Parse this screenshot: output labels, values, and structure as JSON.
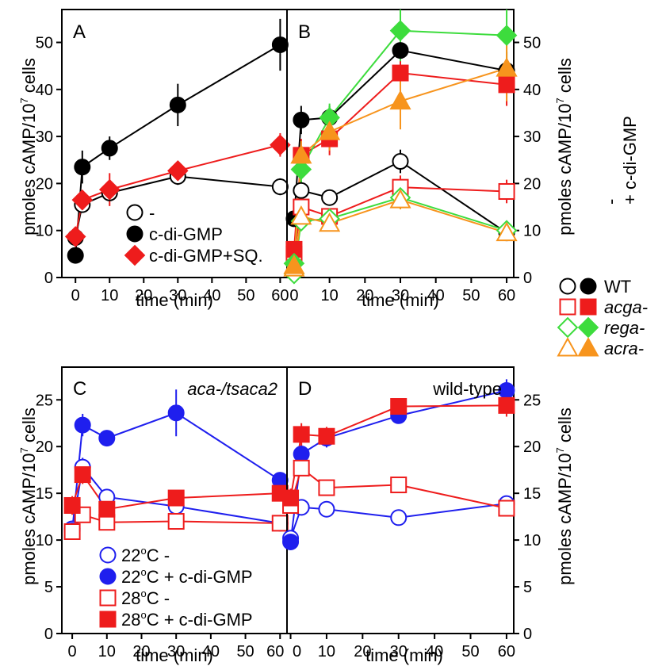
{
  "colors": {
    "black": "#000000",
    "red": "#ee1c1c",
    "green": "#3ddc3d",
    "orange": "#f7941d",
    "blue": "#1f1fee"
  },
  "figure": {
    "time_axis_label": "time (min)",
    "y_axis_label_main": "pmoles cAMP/10",
    "y_axis_label_exp": "7",
    "y_axis_label_tail": " cells",
    "shared_legend": {
      "header_minus": "-",
      "header_plus": "+ c-di-GMP",
      "rows": [
        {
          "label": "WT",
          "color": "#000000",
          "shape": "circle"
        },
        {
          "label": "acga-",
          "color": "#ee1c1c",
          "shape": "square"
        },
        {
          "label": "rega-",
          "color": "#3ddc3d",
          "shape": "diamond"
        },
        {
          "label": "acra-",
          "color": "#f7941d",
          "shape": "triangle"
        }
      ]
    }
  },
  "chart_data": [
    {
      "panel": "A",
      "type": "line",
      "annotation": "",
      "xlabel": "time (min)",
      "ylabel": "pmoles cAMP/10^7 cells",
      "xlim": [
        -4,
        62
      ],
      "ylim": [
        0,
        57
      ],
      "xticks": [
        0,
        10,
        20,
        30,
        40,
        50,
        60
      ],
      "yticks": [
        0,
        10,
        20,
        30,
        40,
        50
      ],
      "series": [
        {
          "name": "-",
          "color": "#000000",
          "marker": "circle",
          "filled": false,
          "x": [
            0,
            2,
            10,
            30,
            60
          ],
          "y": [
            8.5,
            15.5,
            18.0,
            21.5,
            19.3
          ],
          "err": [
            1.2,
            1.5,
            1.5,
            1.8,
            1.8
          ]
        },
        {
          "name": "c-di-GMP",
          "color": "#000000",
          "marker": "circle",
          "filled": true,
          "x": [
            0,
            2,
            10,
            30,
            60
          ],
          "y": [
            4.7,
            23.5,
            27.5,
            36.7,
            49.5
          ],
          "err": [
            1.0,
            3.5,
            2.5,
            4.5,
            5.5
          ]
        },
        {
          "name": "c-di-GMP+SQ.",
          "color": "#ee1c1c",
          "marker": "diamond",
          "filled": true,
          "x": [
            0,
            2,
            10,
            30,
            60
          ],
          "y": [
            8.7,
            16.5,
            18.7,
            22.7,
            28.2
          ],
          "err": [
            1.0,
            2.0,
            3.5,
            1.5,
            2.5
          ]
        }
      ],
      "legend": [
        {
          "label": "-",
          "color": "#000000",
          "marker": "circle",
          "filled": false
        },
        {
          "label": "c-di-GMP",
          "color": "#000000",
          "marker": "circle",
          "filled": true
        },
        {
          "label": "c-di-GMP+SQ.",
          "color": "#ee1c1c",
          "marker": "diamond",
          "filled": true
        }
      ]
    },
    {
      "panel": "B",
      "type": "line",
      "annotation": "",
      "xlabel": "time (min)",
      "ylabel": "pmoles cAMP/10^7 cells",
      "xlim": [
        -2,
        62
      ],
      "ylim": [
        0,
        57
      ],
      "xticks": [
        0,
        10,
        20,
        30,
        40,
        50,
        60
      ],
      "yticks": [
        0,
        10,
        20,
        30,
        40,
        50
      ],
      "series": [
        {
          "name": "WT -",
          "color": "#000000",
          "marker": "circle",
          "filled": false,
          "x": [
            0,
            2,
            10,
            30,
            60
          ],
          "y": [
            4.0,
            18.5,
            17.0,
            24.7,
            9.5
          ],
          "err": [
            0.8,
            2.0,
            1.5,
            2.5,
            1.2
          ]
        },
        {
          "name": "WT + c-di-GMP",
          "color": "#000000",
          "marker": "circle",
          "filled": true,
          "x": [
            0,
            2,
            10,
            30,
            60
          ],
          "y": [
            12.5,
            33.5,
            34.0,
            48.3,
            44.0
          ],
          "err": [
            1.5,
            3.0,
            2.5,
            4.0,
            4.0
          ]
        },
        {
          "name": "acga- -",
          "color": "#ee1c1c",
          "marker": "square",
          "filled": false,
          "x": [
            0,
            2,
            10,
            30,
            60
          ],
          "y": [
            5.0,
            15.0,
            13.0,
            19.2,
            18.3
          ],
          "err": [
            0.8,
            2.0,
            1.5,
            2.5,
            2.5
          ]
        },
        {
          "name": "acga- + c-di-GMP",
          "color": "#ee1c1c",
          "marker": "square",
          "filled": true,
          "x": [
            0,
            2,
            10,
            30,
            60
          ],
          "y": [
            6.0,
            26.0,
            29.5,
            43.5,
            41.0
          ],
          "err": [
            1.0,
            3.5,
            3.5,
            4.0,
            4.5
          ]
        },
        {
          "name": "rega- -",
          "color": "#3ddc3d",
          "marker": "diamond",
          "filled": false,
          "x": [
            0,
            2,
            10,
            30,
            60
          ],
          "y": [
            0.8,
            12.0,
            12.5,
            17.0,
            10.0
          ],
          "err": [
            0.5,
            1.5,
            1.5,
            2.0,
            1.2
          ]
        },
        {
          "name": "rega- + c-di-GMP",
          "color": "#3ddc3d",
          "marker": "diamond",
          "filled": true,
          "x": [
            0,
            2,
            10,
            30,
            60
          ],
          "y": [
            3.0,
            23.0,
            34.0,
            52.5,
            51.5
          ],
          "err": [
            0.8,
            3.0,
            3.0,
            6.5,
            6.5
          ]
        },
        {
          "name": "acra- -",
          "color": "#f7941d",
          "marker": "triangle",
          "filled": false,
          "x": [
            0,
            2,
            10,
            30,
            60
          ],
          "y": [
            2.0,
            13.0,
            11.5,
            16.5,
            9.5
          ],
          "err": [
            0.5,
            2.0,
            1.5,
            2.0,
            1.2
          ]
        },
        {
          "name": "acra- + c-di-GMP",
          "color": "#f7941d",
          "marker": "triangle",
          "filled": true,
          "x": [
            0,
            2,
            10,
            30,
            60
          ],
          "y": [
            2.5,
            26.0,
            31.0,
            37.5,
            44.5
          ],
          "err": [
            0.8,
            3.0,
            4.0,
            6.0,
            7.0
          ]
        }
      ]
    },
    {
      "panel": "C",
      "type": "line",
      "annotation": "aca-/tsaca2",
      "xlabel": "time (min)",
      "ylabel": "pmoles cAMP/10^7 cells",
      "xlim": [
        -3,
        62
      ],
      "ylim": [
        0,
        28.5
      ],
      "xticks": [
        0,
        10,
        20,
        30,
        40,
        50,
        60
      ],
      "yticks": [
        0,
        5,
        10,
        15,
        20,
        25
      ],
      "series": [
        {
          "name": "22oC -",
          "color": "#1f1fee",
          "marker": "circle",
          "filled": false,
          "x": [
            0,
            3,
            10,
            30,
            60
          ],
          "y": [
            11.2,
            17.8,
            14.6,
            13.6,
            11.8
          ],
          "err": [
            0.8,
            1.0,
            0.6,
            0.6,
            0.6
          ]
        },
        {
          "name": "22oC + c-di-GMP",
          "color": "#1f1fee",
          "marker": "circle",
          "filled": true,
          "x": [
            0,
            3,
            10,
            30,
            60
          ],
          "y": [
            11.0,
            22.3,
            20.9,
            23.6,
            16.4
          ],
          "err": [
            0.8,
            1.2,
            0.8,
            2.5,
            0.6
          ]
        },
        {
          "name": "28oC -",
          "color": "#ee1c1c",
          "marker": "square",
          "filled": false,
          "x": [
            0,
            3,
            10,
            30,
            60
          ],
          "y": [
            10.9,
            12.7,
            11.9,
            12.0,
            11.8
          ],
          "err": [
            0.6,
            0.6,
            0.6,
            0.6,
            0.6
          ]
        },
        {
          "name": "28oC + c-di-GMP",
          "color": "#ee1c1c",
          "marker": "square",
          "filled": true,
          "x": [
            0,
            3,
            10,
            30,
            60
          ],
          "y": [
            13.7,
            17.0,
            13.3,
            14.5,
            15.0
          ],
          "err": [
            1.0,
            1.0,
            1.5,
            0.8,
            0.8
          ]
        }
      ],
      "legend": [
        {
          "label": "22",
          "sup": "o",
          "tail": "C -",
          "color": "#1f1fee",
          "marker": "circle",
          "filled": false
        },
        {
          "label": "22",
          "sup": "o",
          "tail": "C + c-di-GMP",
          "color": "#1f1fee",
          "marker": "circle",
          "filled": true
        },
        {
          "label": "28",
          "sup": "o",
          "tail": "C -",
          "color": "#ee1c1c",
          "marker": "square",
          "filled": false
        },
        {
          "label": "28",
          "sup": "o",
          "tail": "C + c-di-GMP",
          "color": "#ee1c1c",
          "marker": "square",
          "filled": true
        }
      ]
    },
    {
      "panel": "D",
      "type": "line",
      "annotation": "wild-type",
      "xlabel": "time (min)",
      "ylabel": "pmoles cAMP/10^7 cells",
      "xlim": [
        -1,
        62
      ],
      "ylim": [
        0,
        28.5
      ],
      "xticks": [
        0,
        10,
        20,
        30,
        40,
        50,
        60
      ],
      "yticks": [
        0,
        5,
        10,
        15,
        20,
        25
      ],
      "series": [
        {
          "name": "22oC -",
          "color": "#1f1fee",
          "marker": "circle",
          "filled": false,
          "x": [
            0,
            3,
            10,
            30,
            60
          ],
          "y": [
            10.2,
            13.5,
            13.3,
            12.4,
            13.9
          ],
          "err": [
            0.6,
            0.8,
            0.8,
            0.8,
            0.6
          ]
        },
        {
          "name": "22oC + c-di-GMP",
          "color": "#1f1fee",
          "marker": "circle",
          "filled": true,
          "x": [
            0,
            3,
            10,
            30,
            60
          ],
          "y": [
            9.8,
            19.2,
            20.9,
            23.3,
            26.0
          ],
          "err": [
            0.6,
            1.0,
            1.0,
            0.8,
            1.2
          ]
        },
        {
          "name": "28oC -",
          "color": "#ee1c1c",
          "marker": "square",
          "filled": false,
          "x": [
            0,
            3,
            10,
            30,
            60
          ],
          "y": [
            13.7,
            17.7,
            15.6,
            15.9,
            13.4
          ],
          "err": [
            0.6,
            0.8,
            0.6,
            0.6,
            0.6
          ]
        },
        {
          "name": "28oC + c-di-GMP",
          "color": "#ee1c1c",
          "marker": "square",
          "filled": true,
          "x": [
            0,
            3,
            10,
            30,
            60
          ],
          "y": [
            14.5,
            21.3,
            21.1,
            24.3,
            24.4
          ],
          "err": [
            1.0,
            1.2,
            1.0,
            0.8,
            1.2
          ]
        }
      ]
    }
  ]
}
